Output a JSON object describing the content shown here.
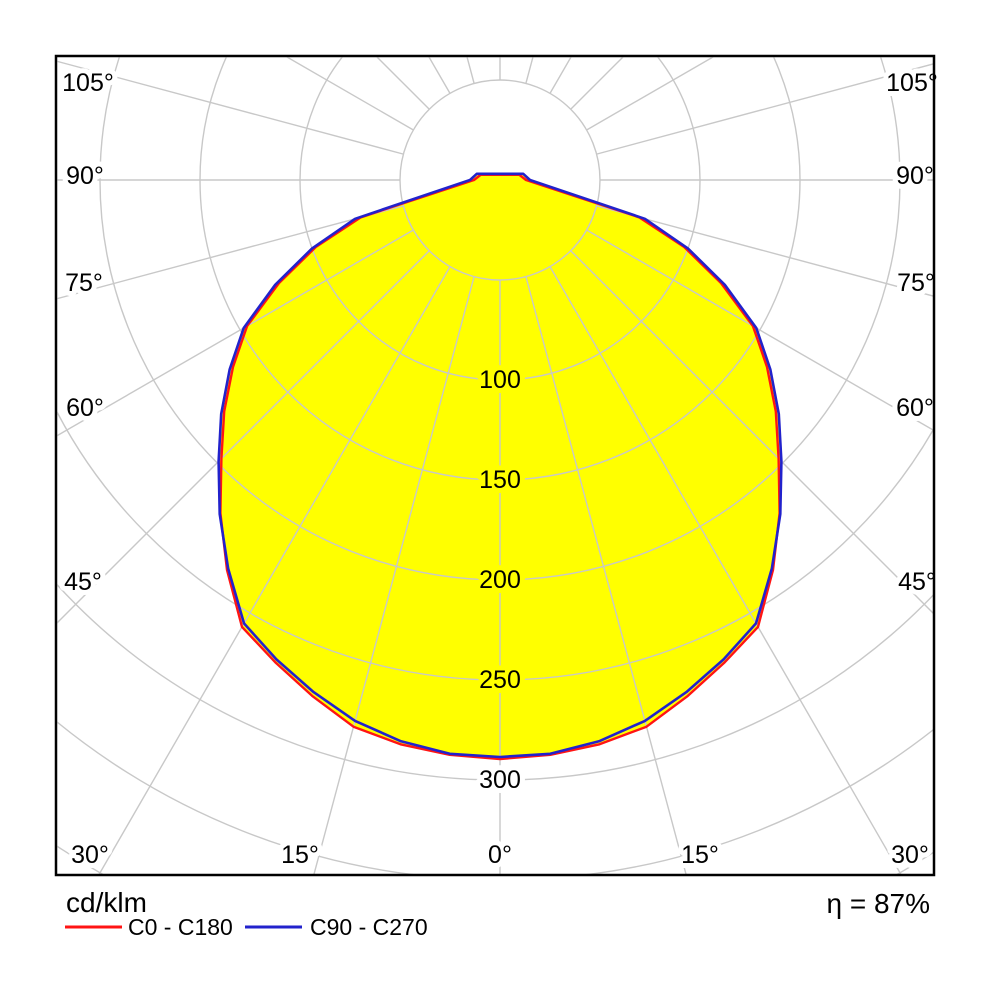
{
  "footer": {
    "units_label": "cd/klm",
    "efficiency_label": "η = 87%"
  },
  "legend": [
    {
      "label": "C0 - C180",
      "color": "#ff1414"
    },
    {
      "label": "C90 - C270",
      "color": "#2222cc"
    }
  ],
  "chart_data": {
    "type": "polar_photometric_curve",
    "title": "",
    "units": "cd/klm",
    "efficiency_percent": 87,
    "gamma_zero_direction": "down",
    "symmetric_mirror": true,
    "gamma_range_deg": [
      -105,
      105
    ],
    "spoke_step_deg": 15,
    "ring_step_units": 50,
    "rings_units": [
      50,
      100,
      150,
      200,
      250,
      300,
      350,
      400
    ],
    "radial_tick_labels": [
      100,
      150,
      200,
      250,
      300
    ],
    "angle_tick_labels_deg": [
      0,
      15,
      30,
      45,
      60,
      75,
      90,
      105
    ],
    "angle_label_suffix": "°",
    "grid_color": "#c8c8c8",
    "fill_color": "#ffff00",
    "series": [
      {
        "name": "C0 - C180",
        "color": "#ff1414",
        "points_gamma_value": [
          [
            0,
            289.5
          ],
          [
            5,
            288.5
          ],
          [
            10,
            286.5
          ],
          [
            15,
            283
          ],
          [
            20,
            274.5
          ],
          [
            25,
            266
          ],
          [
            30,
            258
          ],
          [
            35,
            238
          ],
          [
            40,
            217.5
          ],
          [
            45,
            197
          ],
          [
            50,
            180
          ],
          [
            55,
            163
          ],
          [
            60,
            146
          ],
          [
            65,
            122
          ],
          [
            70,
            98
          ],
          [
            75,
            72
          ],
          [
            90,
            13
          ],
          [
            105,
            10
          ]
        ]
      },
      {
        "name": "C90 - C270",
        "color": "#2222cc",
        "points_gamma_value": [
          [
            0,
            288.5
          ],
          [
            5,
            288
          ],
          [
            10,
            285
          ],
          [
            15,
            280
          ],
          [
            20,
            272.5
          ],
          [
            25,
            264.5
          ],
          [
            30,
            256
          ],
          [
            35,
            237
          ],
          [
            40,
            218
          ],
          [
            45,
            199
          ],
          [
            50,
            182
          ],
          [
            55,
            165
          ],
          [
            60,
            148
          ],
          [
            65,
            124
          ],
          [
            70,
            100
          ],
          [
            75,
            75
          ],
          [
            90,
            15
          ],
          [
            105,
            12
          ]
        ]
      }
    ]
  }
}
